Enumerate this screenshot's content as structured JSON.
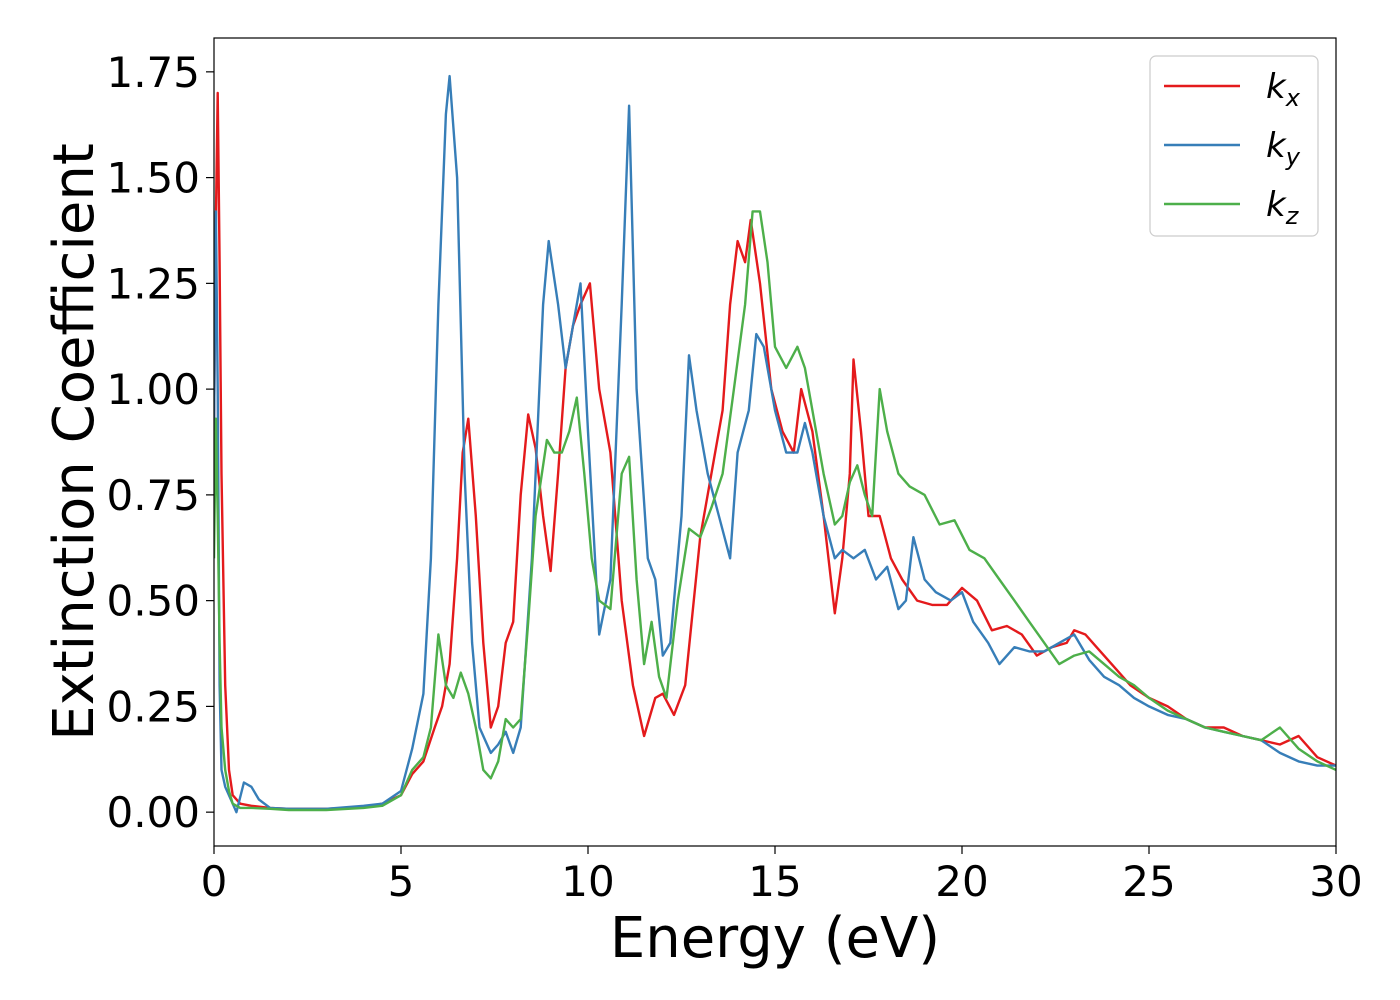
{
  "chart_data": {
    "type": "line",
    "title": "",
    "xlabel": "Energy (eV)",
    "ylabel": "Extinction Coefficient",
    "xlim": [
      0,
      30
    ],
    "ylim": [
      -0.08,
      1.83
    ],
    "xticks": [
      0,
      5,
      10,
      15,
      20,
      25,
      30
    ],
    "xtick_labels": [
      "0",
      "5",
      "10",
      "15",
      "20",
      "25",
      "30"
    ],
    "yticks": [
      0.0,
      0.25,
      0.5,
      0.75,
      1.0,
      1.25,
      1.5,
      1.75
    ],
    "ytick_labels": [
      "0.00",
      "0.25",
      "0.50",
      "0.75",
      "1.00",
      "1.25",
      "1.50",
      "1.75"
    ],
    "grid": false,
    "legend_position": "top-right",
    "series": [
      {
        "name": "k",
        "subscript": "x",
        "color": "#e41a1c",
        "x": [
          0.0,
          0.05,
          0.1,
          0.15,
          0.2,
          0.3,
          0.4,
          0.5,
          0.7,
          1.0,
          1.5,
          2.0,
          3.0,
          4.0,
          4.5,
          5.0,
          5.3,
          5.6,
          5.9,
          6.1,
          6.3,
          6.5,
          6.65,
          6.8,
          7.0,
          7.2,
          7.4,
          7.6,
          7.8,
          8.0,
          8.2,
          8.4,
          8.6,
          8.8,
          9.0,
          9.2,
          9.4,
          9.6,
          9.8,
          10.05,
          10.3,
          10.6,
          10.9,
          11.2,
          11.5,
          11.8,
          12.0,
          12.3,
          12.6,
          13.0,
          13.3,
          13.6,
          13.8,
          14.0,
          14.2,
          14.35,
          14.6,
          14.9,
          15.2,
          15.5,
          15.7,
          16.0,
          16.3,
          16.6,
          16.8,
          17.0,
          17.1,
          17.3,
          17.5,
          17.8,
          18.1,
          18.4,
          18.8,
          19.2,
          19.6,
          20.0,
          20.4,
          20.8,
          21.2,
          21.6,
          22.0,
          22.4,
          22.8,
          23.0,
          23.3,
          23.6,
          24.0,
          24.5,
          25.0,
          25.5,
          26.0,
          26.5,
          27.0,
          27.5,
          28.0,
          28.5,
          29.0,
          29.5,
          30.0
        ],
        "y": [
          0.9,
          1.4,
          1.7,
          1.3,
          0.8,
          0.3,
          0.1,
          0.04,
          0.02,
          0.015,
          0.01,
          0.008,
          0.008,
          0.012,
          0.02,
          0.04,
          0.09,
          0.12,
          0.2,
          0.25,
          0.35,
          0.6,
          0.85,
          0.93,
          0.7,
          0.4,
          0.2,
          0.25,
          0.4,
          0.45,
          0.75,
          0.94,
          0.86,
          0.7,
          0.57,
          0.8,
          1.05,
          1.15,
          1.2,
          1.25,
          1.0,
          0.85,
          0.5,
          0.3,
          0.18,
          0.27,
          0.28,
          0.23,
          0.3,
          0.65,
          0.8,
          0.95,
          1.2,
          1.35,
          1.3,
          1.4,
          1.25,
          1.0,
          0.9,
          0.85,
          1.0,
          0.9,
          0.7,
          0.47,
          0.6,
          0.8,
          1.07,
          0.9,
          0.7,
          0.7,
          0.6,
          0.55,
          0.5,
          0.49,
          0.49,
          0.53,
          0.5,
          0.43,
          0.44,
          0.42,
          0.37,
          0.39,
          0.4,
          0.43,
          0.42,
          0.39,
          0.35,
          0.3,
          0.27,
          0.25,
          0.22,
          0.2,
          0.2,
          0.18,
          0.17,
          0.16,
          0.18,
          0.13,
          0.11
        ]
      },
      {
        "name": "k",
        "subscript": "y",
        "color": "#377eb8",
        "x": [
          0.0,
          0.05,
          0.1,
          0.15,
          0.2,
          0.3,
          0.5,
          0.6,
          0.8,
          1.0,
          1.2,
          1.5,
          2.0,
          3.0,
          4.0,
          4.5,
          5.0,
          5.3,
          5.6,
          5.8,
          6.0,
          6.2,
          6.3,
          6.5,
          6.7,
          6.9,
          7.1,
          7.4,
          7.6,
          7.8,
          8.0,
          8.2,
          8.5,
          8.8,
          8.95,
          9.2,
          9.4,
          9.6,
          9.8,
          10.0,
          10.3,
          10.6,
          10.9,
          11.1,
          11.3,
          11.6,
          11.8,
          12.0,
          12.2,
          12.5,
          12.7,
          12.9,
          13.2,
          13.5,
          13.8,
          14.0,
          14.3,
          14.5,
          14.7,
          15.0,
          15.3,
          15.6,
          15.8,
          16.0,
          16.3,
          16.6,
          16.8,
          17.1,
          17.4,
          17.7,
          18.0,
          18.3,
          18.5,
          18.7,
          19.0,
          19.3,
          19.7,
          20.0,
          20.3,
          20.7,
          21.0,
          21.4,
          21.8,
          22.2,
          22.6,
          23.0,
          23.4,
          23.8,
          24.2,
          24.6,
          25.0,
          25.5,
          26.0,
          26.5,
          27.0,
          27.5,
          28.0,
          28.5,
          29.0,
          29.5,
          30.0
        ],
        "y": [
          0.9,
          1.42,
          1.0,
          0.3,
          0.1,
          0.06,
          0.02,
          0.0,
          0.07,
          0.06,
          0.03,
          0.01,
          0.008,
          0.008,
          0.015,
          0.02,
          0.05,
          0.15,
          0.28,
          0.6,
          1.2,
          1.65,
          1.74,
          1.5,
          0.8,
          0.4,
          0.2,
          0.14,
          0.16,
          0.19,
          0.14,
          0.2,
          0.6,
          1.2,
          1.35,
          1.2,
          1.05,
          1.15,
          1.25,
          0.9,
          0.42,
          0.55,
          1.2,
          1.67,
          1.0,
          0.6,
          0.55,
          0.37,
          0.4,
          0.7,
          1.08,
          0.95,
          0.8,
          0.7,
          0.6,
          0.85,
          0.95,
          1.13,
          1.1,
          0.95,
          0.85,
          0.85,
          0.92,
          0.85,
          0.7,
          0.6,
          0.62,
          0.6,
          0.62,
          0.55,
          0.58,
          0.48,
          0.5,
          0.65,
          0.55,
          0.52,
          0.5,
          0.52,
          0.45,
          0.4,
          0.35,
          0.39,
          0.38,
          0.38,
          0.4,
          0.42,
          0.36,
          0.32,
          0.3,
          0.27,
          0.25,
          0.23,
          0.22,
          0.2,
          0.19,
          0.18,
          0.17,
          0.14,
          0.12,
          0.11,
          0.11
        ]
      },
      {
        "name": "k",
        "subscript": "z",
        "color": "#4daf4a",
        "x": [
          0.0,
          0.05,
          0.1,
          0.15,
          0.2,
          0.3,
          0.4,
          0.5,
          0.7,
          1.0,
          1.5,
          2.0,
          3.0,
          4.0,
          4.5,
          5.0,
          5.3,
          5.6,
          5.8,
          6.0,
          6.2,
          6.4,
          6.6,
          6.8,
          7.0,
          7.2,
          7.4,
          7.6,
          7.8,
          8.0,
          8.2,
          8.4,
          8.6,
          8.9,
          9.1,
          9.3,
          9.5,
          9.7,
          9.9,
          10.1,
          10.3,
          10.6,
          10.9,
          11.1,
          11.3,
          11.5,
          11.7,
          11.9,
          12.1,
          12.4,
          12.7,
          13.0,
          13.3,
          13.6,
          13.9,
          14.2,
          14.4,
          14.6,
          14.8,
          15.0,
          15.3,
          15.6,
          15.8,
          16.0,
          16.3,
          16.6,
          16.8,
          17.0,
          17.2,
          17.4,
          17.6,
          17.8,
          18.0,
          18.3,
          18.6,
          19.0,
          19.4,
          19.8,
          20.2,
          20.6,
          21.0,
          21.4,
          21.8,
          22.2,
          22.6,
          23.0,
          23.4,
          23.8,
          24.2,
          24.6,
          25.0,
          25.5,
          26.0,
          26.5,
          27.0,
          27.5,
          28.0,
          28.5,
          29.0,
          29.5,
          30.0
        ],
        "y": [
          0.6,
          0.93,
          0.7,
          0.4,
          0.2,
          0.1,
          0.05,
          0.02,
          0.01,
          0.01,
          0.008,
          0.005,
          0.005,
          0.01,
          0.015,
          0.04,
          0.1,
          0.13,
          0.2,
          0.42,
          0.3,
          0.27,
          0.33,
          0.28,
          0.2,
          0.1,
          0.08,
          0.12,
          0.22,
          0.2,
          0.22,
          0.45,
          0.7,
          0.88,
          0.85,
          0.85,
          0.9,
          0.98,
          0.8,
          0.6,
          0.5,
          0.48,
          0.8,
          0.84,
          0.55,
          0.35,
          0.45,
          0.32,
          0.27,
          0.5,
          0.67,
          0.65,
          0.72,
          0.8,
          1.0,
          1.2,
          1.42,
          1.42,
          1.3,
          1.1,
          1.05,
          1.1,
          1.05,
          0.95,
          0.8,
          0.68,
          0.7,
          0.78,
          0.82,
          0.75,
          0.7,
          1.0,
          0.9,
          0.8,
          0.77,
          0.75,
          0.68,
          0.69,
          0.62,
          0.6,
          0.55,
          0.5,
          0.45,
          0.4,
          0.35,
          0.37,
          0.38,
          0.35,
          0.32,
          0.3,
          0.27,
          0.24,
          0.22,
          0.2,
          0.19,
          0.18,
          0.17,
          0.2,
          0.15,
          0.12,
          0.1
        ]
      }
    ]
  }
}
